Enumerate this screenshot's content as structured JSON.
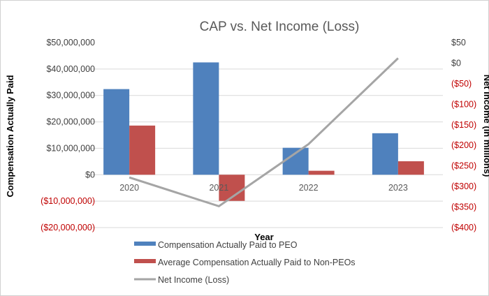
{
  "chart_data": {
    "type": "bar",
    "title": "CAP vs. Net Income (Loss)",
    "xlabel": "Year",
    "ylabel": "Compensation Actually Paid",
    "y2label": "Net Income (in millions)",
    "categories": [
      "2020",
      "2021",
      "2022",
      "2023"
    ],
    "ylim": [
      -20000000,
      50000000
    ],
    "y2lim": [
      -400,
      50
    ],
    "yticks": [
      "$50,000,000",
      "$40,000,000",
      "$30,000,000",
      "$20,000,000",
      "$10,000,000",
      "$0",
      "($10,000,000)",
      "($20,000,000)"
    ],
    "y2ticks": [
      "$50",
      "$0",
      "($50)",
      "($100)",
      "($150)",
      "($200)",
      "($250)",
      "($300)",
      "($350)",
      "($400)"
    ],
    "series": [
      {
        "name": "Compensation Actually Paid to PEO",
        "type": "bar",
        "axis": "left",
        "color": "#4f81bd",
        "values": [
          32400000,
          42500000,
          10200000,
          15700000
        ]
      },
      {
        "name": "Average Compensation Actually Paid to Non-PEOs",
        "type": "bar",
        "axis": "left",
        "color": "#c0504d",
        "values": [
          18600000,
          -9900000,
          1500000,
          5100000
        ]
      },
      {
        "name": "Net Income (Loss)",
        "type": "line",
        "axis": "right",
        "color": "#a5a5a5",
        "values": [
          -278,
          -348,
          -197,
          12
        ]
      }
    ],
    "grid": true,
    "legend": "bottom",
    "negative_tick_color": "#c00000"
  }
}
